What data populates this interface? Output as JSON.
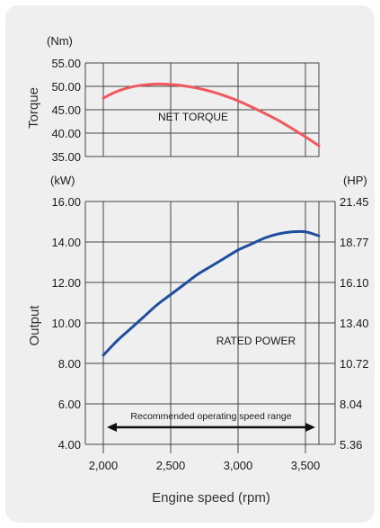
{
  "chart_data": [
    {
      "type": "line",
      "panel": "torque",
      "unit_label": "(Nm)",
      "ylabel": "Torque",
      "annotation": "NET TORQUE",
      "xlim": [
        2000,
        3600
      ],
      "ylim": [
        35,
        55
      ],
      "yticks": [
        "55.00",
        "50.00",
        "45.00",
        "40.00",
        "35.00"
      ],
      "ytick_values": [
        55,
        50,
        45,
        40,
        35
      ],
      "x_grid": [
        2500,
        3000,
        3500
      ],
      "color": "#f0585e",
      "series": [
        {
          "x": [
            2000,
            2100,
            2200,
            2300,
            2400,
            2500,
            2600,
            2700,
            2800,
            2900,
            3000,
            3100,
            3200,
            3300,
            3400,
            3500,
            3600
          ],
          "values": [
            47.5,
            48.9,
            49.8,
            50.3,
            50.5,
            50.4,
            50.1,
            49.6,
            48.9,
            48.0,
            46.9,
            45.6,
            44.2,
            42.7,
            41.0,
            39.2,
            37.3
          ]
        }
      ]
    },
    {
      "type": "line",
      "panel": "output",
      "unit_label_left": "(kW)",
      "unit_label_right": "(HP)",
      "ylabel": "Output",
      "xlabel": "Engine speed (rpm)",
      "annotation": "RATED POWER",
      "xlim": [
        2000,
        3600
      ],
      "ylim": [
        4,
        16
      ],
      "yticks_left": [
        "16.00",
        "14.00",
        "12.00",
        "10.00",
        "8.00",
        "6.00",
        "4.00"
      ],
      "ytick_values_left": [
        16,
        14,
        12,
        10,
        8,
        6,
        4
      ],
      "yticks_right": [
        "21.45",
        "18.77",
        "16.10",
        "13.40",
        "10.72",
        "8.04",
        "5.36"
      ],
      "xticks": [
        "2,000",
        "2,500",
        "3,000",
        "3,500"
      ],
      "xtick_values": [
        2000,
        2500,
        3000,
        3500
      ],
      "x_grid": [
        2500,
        3000,
        3500
      ],
      "color": "#1f4e9c",
      "series": [
        {
          "x": [
            2000,
            2100,
            2200,
            2300,
            2400,
            2500,
            2600,
            2700,
            2800,
            2900,
            3000,
            3100,
            3200,
            3300,
            3400,
            3500,
            3600
          ],
          "values": [
            8.4,
            9.1,
            9.7,
            10.3,
            10.9,
            11.4,
            11.9,
            12.4,
            12.8,
            13.2,
            13.6,
            13.9,
            14.2,
            14.4,
            14.5,
            14.5,
            14.3
          ]
        }
      ],
      "range_arrow": {
        "label": "Recommended operating speed range",
        "from": 2000,
        "to": 3600
      }
    }
  ]
}
